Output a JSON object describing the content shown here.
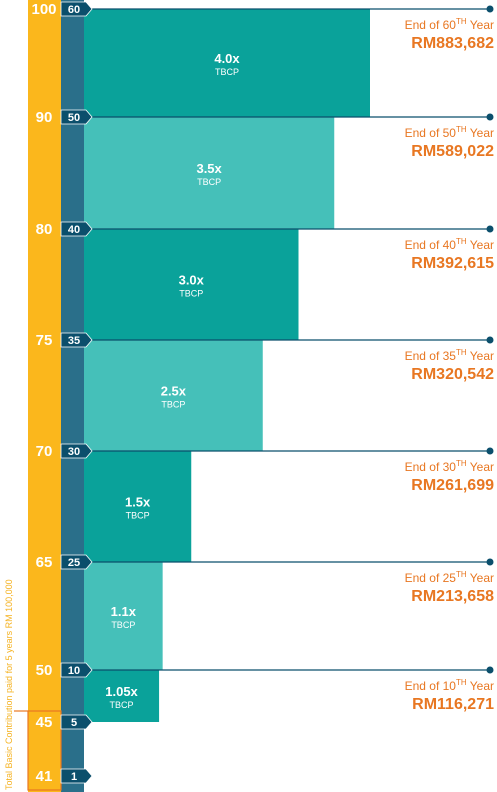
{
  "colors": {
    "age_strip": "#fbb71c",
    "year_strip": "#2a6f8a",
    "tag": "#0b4f6c",
    "bar_dark": "#0aa29a",
    "bar_light": "#45c0b9",
    "line": "#0b4f6c",
    "orange": "#e87722",
    "side_note": "#f5b323"
  },
  "side_note": "Total Basic Contribution paid for 5 years RM 100,000",
  "tbcp_label": "TBCP",
  "end_prefix": "End of ",
  "end_suffix": " Year",
  "chart_data": {
    "type": "bar",
    "orientation": "horizontal",
    "ages": [
      "100",
      "90",
      "80",
      "75",
      "70",
      "65",
      "50",
      "45",
      "41"
    ],
    "years": [
      "60",
      "50",
      "40",
      "35",
      "30",
      "25",
      "10",
      "5",
      "1"
    ],
    "series": [
      {
        "year": "60",
        "sup": "TH",
        "multiplier": 4.0,
        "mult_label": "4.0x",
        "amount": "RM883,682",
        "shade": "dark"
      },
      {
        "year": "50",
        "sup": "TH",
        "multiplier": 3.5,
        "mult_label": "3.5x",
        "amount": "RM589,022",
        "shade": "light"
      },
      {
        "year": "40",
        "sup": "TH",
        "multiplier": 3.0,
        "mult_label": "3.0x",
        "amount": "RM392,615",
        "shade": "dark"
      },
      {
        "year": "35",
        "sup": "TH",
        "multiplier": 2.5,
        "mult_label": "2.5x",
        "amount": "RM320,542",
        "shade": "light"
      },
      {
        "year": "30",
        "sup": "TH",
        "multiplier": 1.5,
        "mult_label": "1.5x",
        "amount": "RM261,699",
        "shade": "dark"
      },
      {
        "year": "25",
        "sup": "TH",
        "multiplier": 1.1,
        "mult_label": "1.1x",
        "amount": "RM213,658",
        "shade": "light"
      },
      {
        "year": "10",
        "sup": "TH",
        "multiplier": 1.05,
        "mult_label": "1.05x",
        "amount": "RM116,271",
        "shade": "dark"
      }
    ]
  }
}
